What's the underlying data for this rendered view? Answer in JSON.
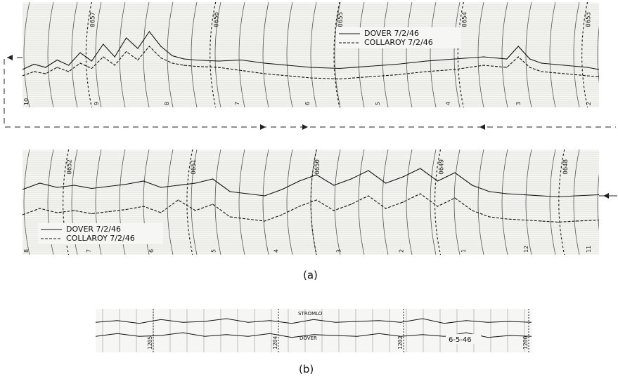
{
  "panel_labels": {
    "a": "(a)",
    "b": "(b)"
  },
  "chart_data": [
    {
      "type": "line",
      "panel": "a-top",
      "time_labels": [
        "0657",
        "0656",
        "0655",
        "0654",
        "0653"
      ],
      "hour_ticks": [
        "10",
        "9",
        "8",
        "7",
        "6",
        "5",
        "4",
        "3",
        "2"
      ],
      "legend": [
        {
          "name": "DOVER 7/2/46",
          "style": "solid"
        },
        {
          "name": "COLLAROY 7/2/46",
          "style": "dashed"
        }
      ],
      "series": [
        {
          "name": "DOVER 7/2/46",
          "x": [
            0,
            2,
            4,
            6,
            8,
            10,
            12,
            14,
            16,
            18,
            20,
            22,
            24,
            26,
            28,
            30,
            34,
            38,
            42,
            46,
            50,
            55,
            60,
            65,
            70,
            75,
            80,
            84,
            86,
            88,
            90,
            94,
            98,
            100
          ],
          "y": [
            36,
            41,
            38,
            45,
            40,
            52,
            44,
            60,
            48,
            66,
            56,
            72,
            58,
            49,
            46,
            45,
            44,
            45,
            42,
            40,
            38,
            37,
            39,
            41,
            44,
            46,
            48,
            46,
            58,
            46,
            42,
            40,
            38,
            36
          ]
        },
        {
          "name": "COLLAROY 7/2/46",
          "x": [
            0,
            2,
            4,
            6,
            8,
            10,
            12,
            14,
            16,
            18,
            20,
            22,
            24,
            26,
            28,
            30,
            34,
            38,
            42,
            46,
            50,
            55,
            60,
            65,
            70,
            75,
            80,
            84,
            86,
            88,
            90,
            94,
            98,
            100
          ],
          "y": [
            30,
            34,
            32,
            38,
            34,
            42,
            37,
            48,
            40,
            53,
            45,
            58,
            47,
            42,
            40,
            39,
            38,
            35,
            32,
            30,
            28,
            27,
            29,
            31,
            34,
            36,
            40,
            38,
            48,
            38,
            34,
            32,
            30,
            29
          ]
        }
      ]
    },
    {
      "type": "line",
      "panel": "a-bottom",
      "time_labels": [
        "0652",
        "0651",
        "0650",
        "0649",
        "0648"
      ],
      "hour_ticks": [
        "8",
        "7",
        "6",
        "5",
        "4",
        "3",
        "2",
        "1",
        "12",
        "11"
      ],
      "legend": [
        {
          "name": "DOVER 7/2/46",
          "style": "solid"
        },
        {
          "name": "COLLAROY 7/2/46",
          "style": "dashed"
        }
      ],
      "series": [
        {
          "name": "DOVER 7/2/46",
          "x": [
            0,
            3,
            6,
            9,
            12,
            15,
            18,
            21,
            24,
            27,
            30,
            33,
            36,
            39,
            42,
            45,
            48,
            51,
            54,
            57,
            60,
            63,
            66,
            69,
            72,
            75,
            78,
            81,
            84,
            87,
            90,
            93,
            96,
            100
          ],
          "y": [
            62,
            68,
            64,
            66,
            63,
            65,
            67,
            70,
            64,
            66,
            68,
            72,
            60,
            58,
            56,
            62,
            70,
            76,
            66,
            72,
            80,
            68,
            74,
            82,
            70,
            78,
            66,
            60,
            58,
            57,
            56,
            55,
            56,
            57
          ]
        },
        {
          "name": "COLLAROY 7/2/46",
          "x": [
            0,
            3,
            6,
            9,
            12,
            15,
            18,
            21,
            24,
            27,
            30,
            33,
            36,
            39,
            42,
            45,
            48,
            51,
            54,
            57,
            60,
            63,
            66,
            69,
            72,
            75,
            78,
            81,
            84,
            87,
            90,
            93,
            96,
            100
          ],
          "y": [
            38,
            44,
            40,
            42,
            39,
            41,
            43,
            46,
            40,
            52,
            42,
            48,
            36,
            34,
            32,
            38,
            46,
            52,
            42,
            48,
            56,
            44,
            50,
            58,
            46,
            54,
            42,
            36,
            34,
            33,
            32,
            31,
            32,
            33
          ]
        }
      ]
    },
    {
      "type": "line",
      "panel": "b",
      "time_labels": [
        "1205",
        "1204",
        "1202",
        "1200"
      ],
      "upper_trace_label": "STROMLO",
      "lower_trace_label": "DOVER",
      "date_label": "6-5-46",
      "series": [
        {
          "name": "STROMLO",
          "x": [
            0,
            5,
            10,
            15,
            20,
            25,
            30,
            35,
            40,
            45,
            50,
            55,
            60,
            65,
            70,
            75,
            80,
            85,
            90,
            95,
            100
          ],
          "y": [
            50,
            52,
            49,
            53,
            50,
            51,
            54,
            50,
            52,
            49,
            53,
            50,
            51,
            52,
            50,
            54,
            49,
            52,
            50,
            51,
            50
          ]
        },
        {
          "name": "DOVER",
          "x": [
            0,
            5,
            10,
            15,
            20,
            25,
            30,
            35,
            40,
            45,
            50,
            55,
            60,
            65,
            70,
            75,
            80,
            85,
            90,
            95,
            100
          ],
          "y": [
            50,
            53,
            50,
            51,
            54,
            50,
            52,
            50,
            53,
            49,
            52,
            51,
            50,
            53,
            50,
            52,
            50,
            54,
            49,
            51,
            50
          ]
        }
      ]
    }
  ]
}
